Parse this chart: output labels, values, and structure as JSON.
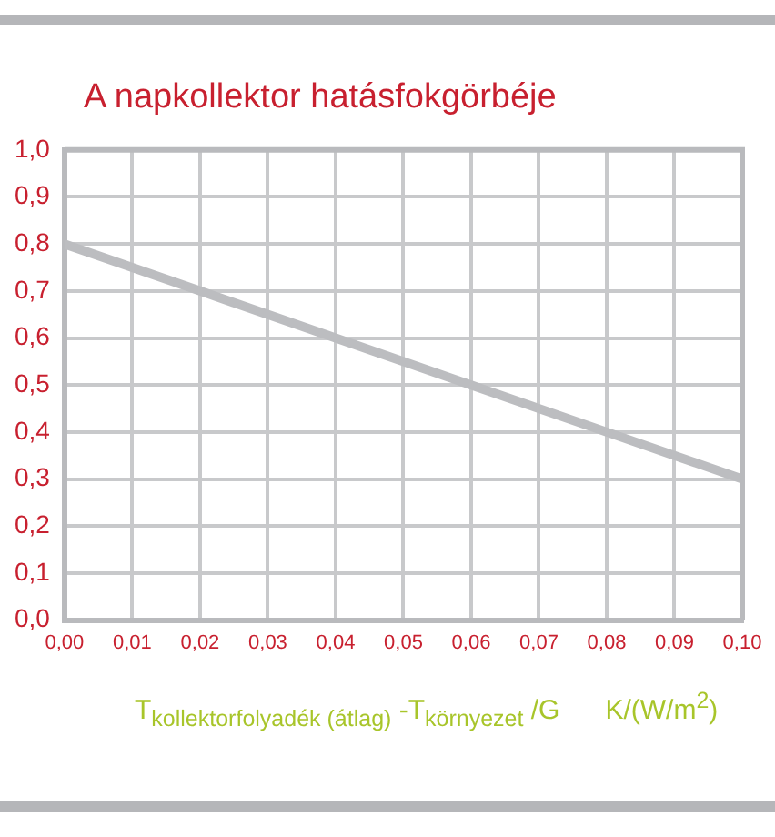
{
  "chart_data": {
    "type": "line",
    "title": "A napkollektor hatásfokgörbéje",
    "xlabel": "T$_{kollektorfolyadék (átlag)}$ -T$_{környezet}$ /G      K/(W/m$^{2}$)",
    "x": [
      0,
      0.02,
      0.04,
      0.06,
      0.08,
      0.1
    ],
    "series": [
      {
        "color": "#bcbdc0",
        "values": [
          0.8,
          0.7,
          0.6,
          0.5,
          0.4,
          0.3
        ]
      }
    ],
    "xlim": [
      0,
      0.1
    ],
    "ylim": [
      0,
      1
    ],
    "xticks": [
      {
        "value": 0,
        "label": "0,00"
      },
      {
        "value": 0.01,
        "label": "0,01"
      },
      {
        "value": 0.02,
        "label": "0,02"
      },
      {
        "value": 0.03,
        "label": "0,03"
      },
      {
        "value": 0.04,
        "label": "0,04"
      },
      {
        "value": 0.05,
        "label": "0,05"
      },
      {
        "value": 0.06,
        "label": "0,06"
      },
      {
        "value": 0.07,
        "label": "0,07"
      },
      {
        "value": 0.08,
        "label": "0,08"
      },
      {
        "value": 0.09,
        "label": "0,09"
      },
      {
        "value": 0.1,
        "label": "0,10"
      }
    ],
    "yticks": [
      {
        "value": 0,
        "label": "0,0"
      },
      {
        "value": 0.1,
        "label": "0,1"
      },
      {
        "value": 0.2,
        "label": "0,2"
      },
      {
        "value": 0.3,
        "label": "0,3"
      },
      {
        "value": 0.4,
        "label": "0,4"
      },
      {
        "value": 0.5,
        "label": "0,5"
      },
      {
        "value": 0.6,
        "label": "0,6"
      },
      {
        "value": 0.7,
        "label": "0,7"
      },
      {
        "value": 0.8,
        "label": "0,8"
      },
      {
        "value": 0.9,
        "label": "0,9"
      },
      {
        "value": 1,
        "label": "1,0"
      }
    ],
    "grid": true,
    "legend": false,
    "marker": "none",
    "line_style": "solid"
  }
}
